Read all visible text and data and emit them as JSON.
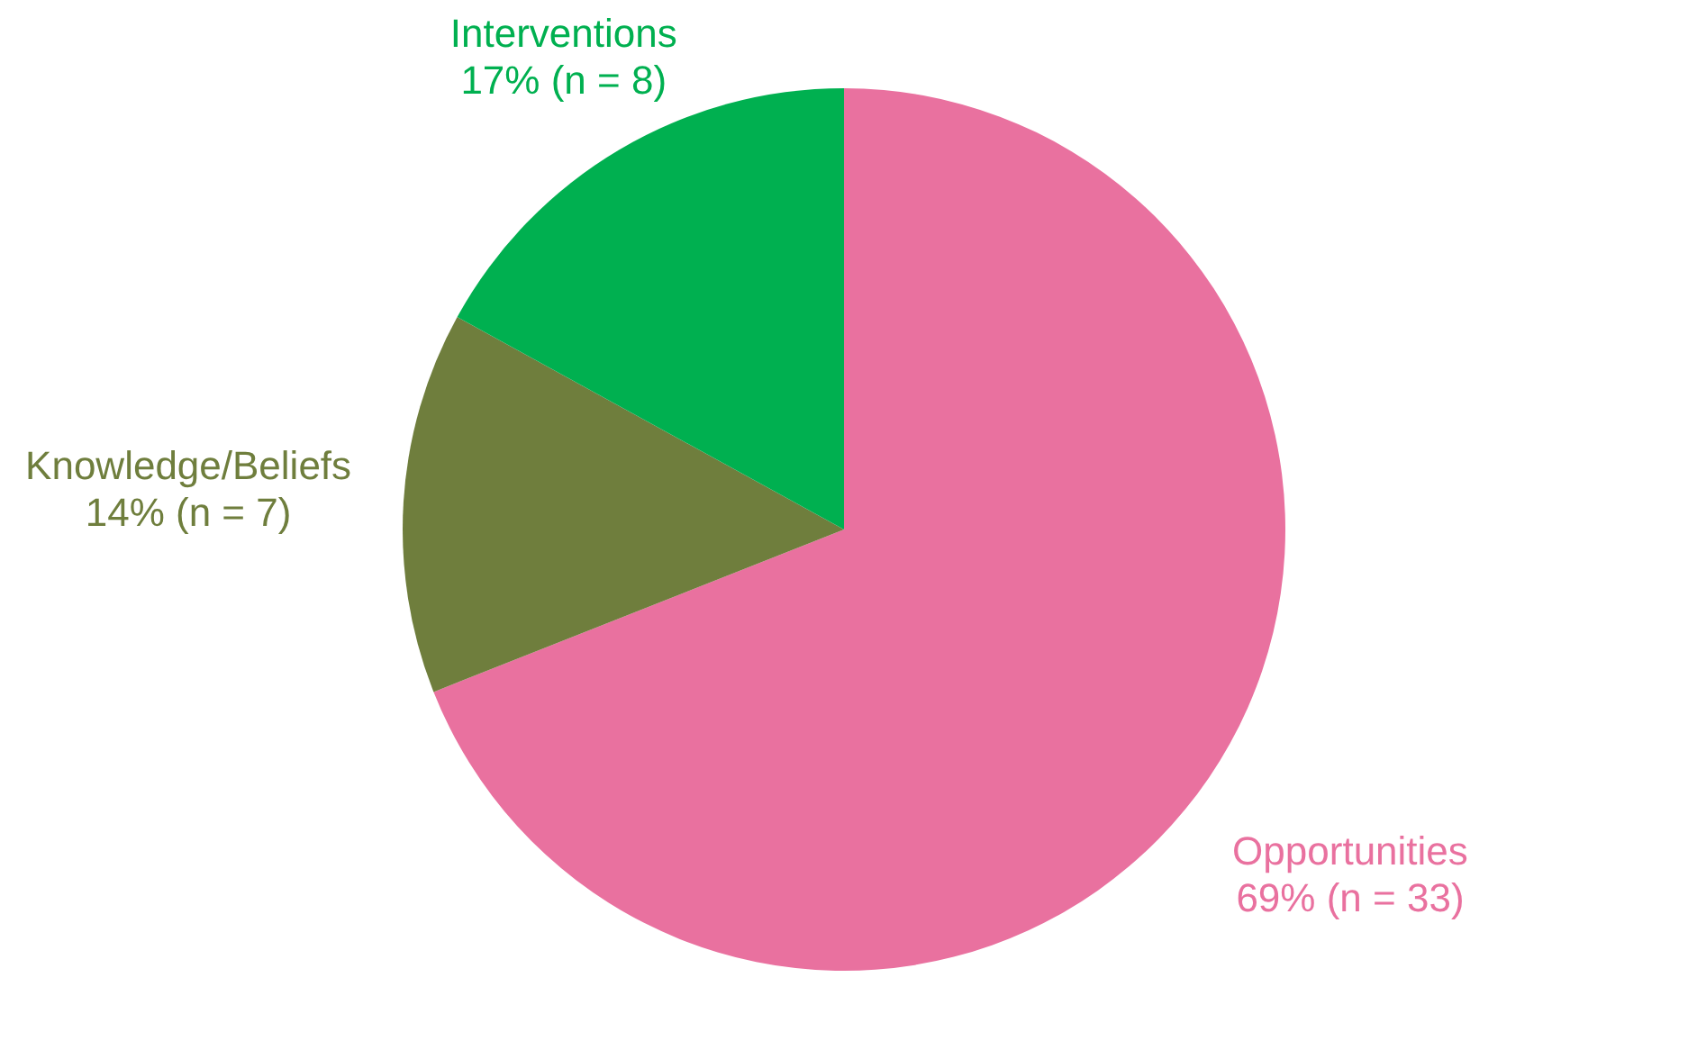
{
  "chart_data": {
    "type": "pie",
    "categories": [
      "Opportunities",
      "Knowledge/Beliefs",
      "Interventions"
    ],
    "values": [
      69,
      14,
      17
    ],
    "value_labels": [
      "69% (n = 33)",
      "14% (n = 7)",
      "17% (n = 8)"
    ],
    "colors": [
      "#e9719f",
      "#6f7e3d",
      "#00b050"
    ]
  }
}
